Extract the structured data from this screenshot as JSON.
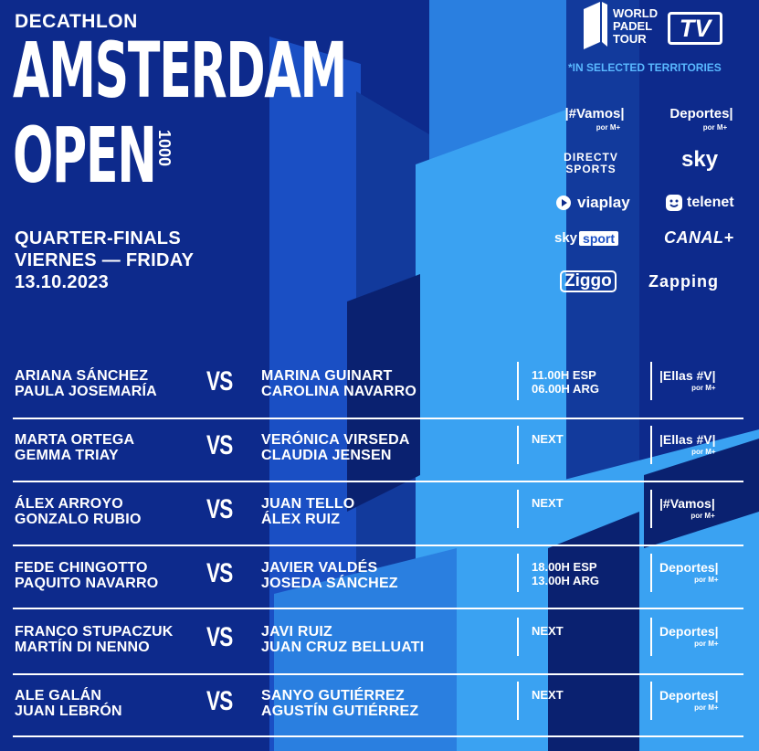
{
  "header": {
    "sponsor": "DECATHLON",
    "title_line1": "AMSTERDAM",
    "title_line2": "OPEN",
    "tier": "1000",
    "stage": "QUARTER-FINALS",
    "day": "VIERNES — FRIDAY",
    "date": "13.10.2023"
  },
  "tv_logo": {
    "line1": "WORLD",
    "line2": "PADEL",
    "line3": "TOUR",
    "badge": "TV",
    "territories": "*IN SELECTED TERRITORIES"
  },
  "broadcasters": {
    "vamos": "|#Vamos|",
    "vamos_sub": "por M+",
    "deportes": "Deportes|",
    "deportes_sub": "por M+",
    "directv_line1": "DIRECTV",
    "directv_line2": "SPORTS",
    "sky": "sky",
    "viaplay": "viaplay",
    "telenet": "telenet",
    "skysport_sky": "sky",
    "skysport_sport": "sport",
    "canal": "CANAL+",
    "ziggo": "Ziggo",
    "zapping": "Zapping"
  },
  "matches": [
    {
      "team1": [
        "ARIANA SÁNCHEZ",
        "PAULA JOSEMARÍA"
      ],
      "vs": "VS",
      "team2": [
        "MARINA GUINART",
        "CAROLINA NAVARRO"
      ],
      "time": [
        "11.00H ESP",
        "06.00H ARG"
      ],
      "channel": "|Ellas #V|",
      "channel_sub": "por M+"
    },
    {
      "team1": [
        "MARTA ORTEGA",
        "GEMMA TRIAY"
      ],
      "vs": "VS",
      "team2": [
        "VERÓNICA VIRSEDA",
        "CLAUDIA JENSEN"
      ],
      "time": [
        "NEXT"
      ],
      "channel": "|Ellas #V|",
      "channel_sub": "por M+"
    },
    {
      "team1": [
        "ÁLEX ARROYO",
        "GONZALO RUBIO"
      ],
      "vs": "VS",
      "team2": [
        "JUAN TELLO",
        "ÁLEX RUIZ"
      ],
      "time": [
        "NEXT"
      ],
      "channel": "|#Vamos|",
      "channel_sub": "por M+"
    },
    {
      "team1": [
        "FEDE CHINGOTTO",
        "PAQUITO NAVARRO"
      ],
      "vs": "VS",
      "team2": [
        "JAVIER VALDÉS",
        "JOSEDA SÁNCHEZ"
      ],
      "time": [
        "18.00H ESP",
        "13.00H ARG"
      ],
      "channel": "Deportes|",
      "channel_sub": "por M+"
    },
    {
      "team1": [
        "FRANCO STUPACZUK",
        "MARTÍN DI NENNO"
      ],
      "vs": "VS",
      "team2": [
        "JAVI RUIZ",
        "JUAN CRUZ BELLUATI"
      ],
      "time": [
        "NEXT"
      ],
      "channel": "Deportes|",
      "channel_sub": "por M+"
    },
    {
      "team1": [
        "ALE GALÁN",
        "JUAN LEBRÓN"
      ],
      "vs": "VS",
      "team2": [
        "SANYO GUTIÉRREZ",
        "AGUSTÍN GUTIÉRREZ"
      ],
      "time": [
        "NEXT"
      ],
      "channel": "Deportes|",
      "channel_sub": "por M+"
    }
  ],
  "colors": {
    "background": "#0d2a8c",
    "shape_dark": "#0a2170",
    "shape_light": "#3aa2f2",
    "accent": "#59b8ff"
  }
}
